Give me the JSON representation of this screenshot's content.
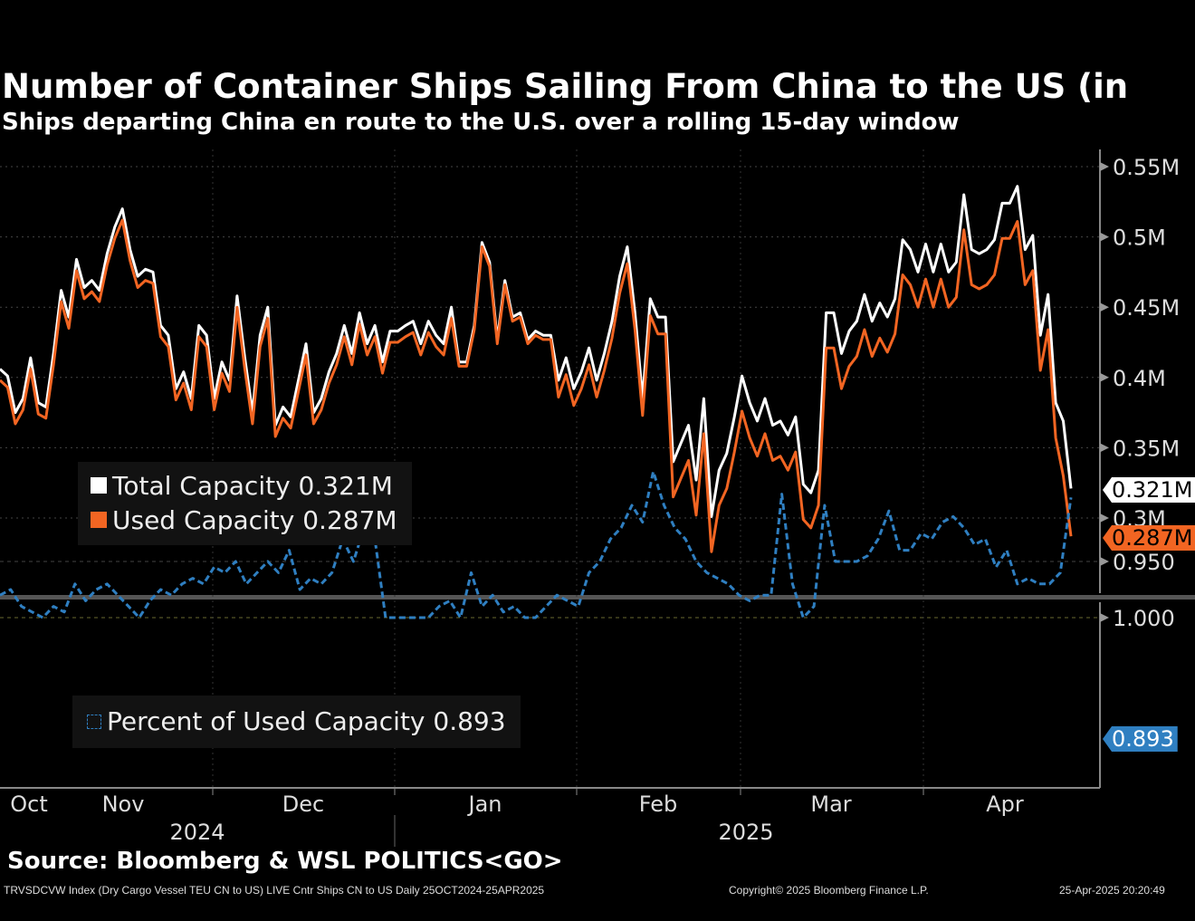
{
  "title": "Number of Container Ships Sailing From China to the US (in",
  "subtitle": "Ships departing China en route to the U.S. over a rolling 15-day window",
  "source": "Source: Bloomberg & WSL POLITICS<GO>",
  "footer": {
    "left": "TRVSDCVW Index (Dry Cargo Vessel TEU CN to US) LIVE Cntr Ships CN to US  Daily 25OCT2024-25APR2025",
    "center": "Copyright© 2025 Bloomberg Finance L.P.",
    "right": "25-Apr-2025 20:20:49"
  },
  "colors": {
    "total": "#ffffff",
    "used": "#f26522",
    "percent": "#2f7fc1",
    "bg": "#000000"
  },
  "chart_data": [
    {
      "type": "line",
      "title": "Number of Container Ships Sailing From China to the US",
      "x_range": [
        "2024-10-25",
        "2025-04-25"
      ],
      "ylim": [
        0.25,
        0.56
      ],
      "yticks": [
        0.3,
        0.35,
        0.4,
        0.45,
        0.5,
        0.55
      ],
      "ytick_labels": [
        "0.3M",
        "0.35M",
        "0.4M",
        "0.45M",
        "0.5M",
        "0.55M"
      ],
      "legend": [
        "Total Capacity 0.321M",
        "Used Capacity 0.287M"
      ],
      "legend_position": "bottom-left",
      "last_labels": {
        "total": "0.321M",
        "used": "0.287M"
      },
      "series": [
        {
          "name": "Total Capacity",
          "last": "0.321M",
          "values": [
            0.406,
            0.401,
            0.375,
            0.385,
            0.414,
            0.382,
            0.379,
            0.417,
            0.462,
            0.443,
            0.484,
            0.464,
            0.469,
            0.462,
            0.488,
            0.507,
            0.52,
            0.491,
            0.472,
            0.477,
            0.475,
            0.437,
            0.43,
            0.392,
            0.404,
            0.385,
            0.437,
            0.43,
            0.385,
            0.411,
            0.398,
            0.458,
            0.414,
            0.375,
            0.43,
            0.45,
            0.366,
            0.379,
            0.372,
            0.398,
            0.424,
            0.375,
            0.385,
            0.404,
            0.417,
            0.437,
            0.417,
            0.446,
            0.424,
            0.437,
            0.411,
            0.433,
            0.433,
            0.437,
            0.44,
            0.424,
            0.44,
            0.43,
            0.424,
            0.45,
            0.411,
            0.411,
            0.437,
            0.496,
            0.482,
            0.427,
            0.469,
            0.443,
            0.446,
            0.427,
            0.433,
            0.43,
            0.43,
            0.398,
            0.414,
            0.392,
            0.404,
            0.421,
            0.398,
            0.417,
            0.44,
            0.472,
            0.493,
            0.446,
            0.385,
            0.456,
            0.443,
            0.443,
            0.34,
            0.353,
            0.366,
            0.327,
            0.385,
            0.301,
            0.334,
            0.346,
            0.372,
            0.401,
            0.382,
            0.369,
            0.385,
            0.366,
            0.369,
            0.359,
            0.372,
            0.324,
            0.318,
            0.334,
            0.446,
            0.446,
            0.417,
            0.433,
            0.44,
            0.459,
            0.44,
            0.453,
            0.443,
            0.456,
            0.498,
            0.491,
            0.475,
            0.495,
            0.475,
            0.495,
            0.475,
            0.482,
            0.53,
            0.491,
            0.488,
            0.491,
            0.498,
            0.524,
            0.524,
            0.536,
            0.491,
            0.501,
            0.43,
            0.459,
            0.382,
            0.369,
            0.321
          ]
        },
        {
          "name": "Used Capacity",
          "last": "0.287M",
          "values": [
            0.398,
            0.393,
            0.367,
            0.377,
            0.406,
            0.374,
            0.371,
            0.409,
            0.454,
            0.435,
            0.476,
            0.456,
            0.461,
            0.454,
            0.48,
            0.499,
            0.512,
            0.483,
            0.464,
            0.469,
            0.467,
            0.429,
            0.422,
            0.384,
            0.396,
            0.377,
            0.429,
            0.422,
            0.377,
            0.403,
            0.39,
            0.45,
            0.406,
            0.367,
            0.422,
            0.442,
            0.358,
            0.371,
            0.364,
            0.39,
            0.416,
            0.367,
            0.377,
            0.396,
            0.409,
            0.429,
            0.409,
            0.438,
            0.416,
            0.429,
            0.403,
            0.425,
            0.425,
            0.429,
            0.432,
            0.416,
            0.432,
            0.422,
            0.416,
            0.442,
            0.408,
            0.408,
            0.434,
            0.493,
            0.479,
            0.424,
            0.466,
            0.44,
            0.443,
            0.424,
            0.43,
            0.427,
            0.427,
            0.386,
            0.402,
            0.38,
            0.392,
            0.409,
            0.386,
            0.405,
            0.428,
            0.46,
            0.481,
            0.434,
            0.373,
            0.444,
            0.431,
            0.431,
            0.315,
            0.328,
            0.341,
            0.302,
            0.36,
            0.276,
            0.309,
            0.321,
            0.347,
            0.376,
            0.357,
            0.344,
            0.36,
            0.341,
            0.344,
            0.334,
            0.347,
            0.299,
            0.293,
            0.309,
            0.421,
            0.421,
            0.392,
            0.408,
            0.415,
            0.434,
            0.415,
            0.428,
            0.418,
            0.431,
            0.473,
            0.466,
            0.45,
            0.47,
            0.45,
            0.47,
            0.45,
            0.457,
            0.505,
            0.466,
            0.463,
            0.466,
            0.473,
            0.499,
            0.499,
            0.511,
            0.466,
            0.476,
            0.405,
            0.434,
            0.357,
            0.33,
            0.287
          ]
        }
      ]
    },
    {
      "type": "line",
      "title": "Percent of Used Capacity",
      "x_range": [
        "2024-10-25",
        "2025-04-25"
      ],
      "ylim": [
        0.85,
        1.01
      ],
      "yticks": [
        0.9,
        0.95,
        1.0
      ],
      "ytick_labels": [
        "0.893",
        "0.950",
        "1.000"
      ],
      "legend": [
        "Percent of Used Capacity 0.893"
      ],
      "legend_position": "bottom-left",
      "series": [
        {
          "name": "Percent of Used Capacity",
          "last": "0.893",
          "style": "dashed",
          "values": [
            0.98,
            0.975,
            0.99,
            0.995,
            1.0,
            0.99,
            0.995,
            0.97,
            0.985,
            0.975,
            0.97,
            0.98,
            0.99,
            1.0,
            0.985,
            0.975,
            0.98,
            0.97,
            0.965,
            0.97,
            0.955,
            0.96,
            0.95,
            0.97,
            0.96,
            0.95,
            0.96,
            0.94,
            0.975,
            0.965,
            0.97,
            0.96,
            0.93,
            0.95,
            0.92,
            0.93,
            1.0,
            1.0,
            1.0,
            1.0,
            1.0,
            0.99,
            0.985,
            1.0,
            0.96,
            0.99,
            0.98,
            0.995,
            0.99,
            1.0,
            1.0,
            0.99,
            0.98,
            0.985,
            0.99,
            0.96,
            0.95,
            0.93,
            0.92,
            0.9,
            0.915,
            0.87,
            0.9,
            0.92,
            0.93,
            0.95,
            0.96,
            0.965,
            0.97,
            0.98,
            0.985,
            0.98,
            0.98,
            0.89,
            0.97,
            1.0,
            0.99,
            0.9,
            0.95,
            0.95,
            0.95,
            0.945,
            0.93,
            0.905,
            0.94,
            0.94,
            0.925,
            0.93,
            0.915,
            0.91,
            0.92,
            0.935,
            0.93,
            0.955,
            0.94,
            0.97,
            0.965,
            0.97,
            0.97,
            0.96,
            0.893
          ]
        }
      ]
    }
  ],
  "x_axis": {
    "months": [
      "Oct",
      "Nov",
      "Dec",
      "Jan",
      "Feb",
      "Mar",
      "Apr"
    ],
    "years": [
      "2024",
      "2025"
    ]
  }
}
